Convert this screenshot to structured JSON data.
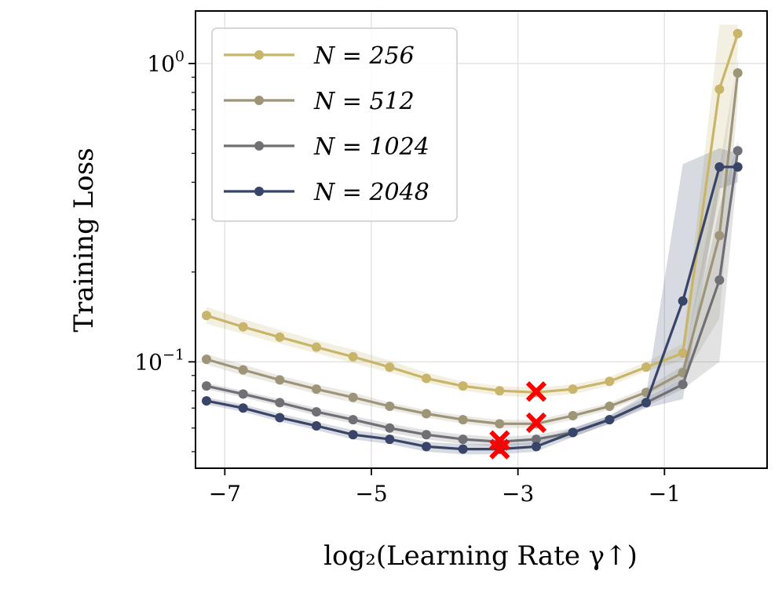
{
  "chart_data": {
    "type": "line",
    "title": "",
    "xlabel": "log₂(Learning Rate γ↑)",
    "ylabel": "Training Loss",
    "xlim": [
      -7.4,
      0.4
    ],
    "ylim": [
      0.044,
      1.5
    ],
    "yscale": "log",
    "grid": true,
    "legend_position": "top-left",
    "xticks": [
      -7,
      -5,
      -3,
      -1
    ],
    "xtick_labels": [
      "−7",
      "−5",
      "−3",
      "−1"
    ],
    "yticks": [
      0.1,
      1.0
    ],
    "x": [
      -7.25,
      -6.75,
      -6.25,
      -5.75,
      -5.25,
      -4.75,
      -4.25,
      -3.75,
      -3.25,
      -2.75,
      -2.25,
      -1.75,
      -1.25,
      -0.75,
      -0.25,
      0.0
    ],
    "series": [
      {
        "name": "N = 256",
        "color": "#c8b569",
        "values": [
          0.143,
          0.131,
          0.121,
          0.112,
          0.104,
          0.096,
          0.088,
          0.083,
          0.08,
          0.079,
          0.081,
          0.086,
          0.096,
          0.107,
          0.82,
          1.26
        ],
        "band_low": [
          0.134,
          0.124,
          0.115,
          0.107,
          0.099,
          0.092,
          0.085,
          0.08,
          0.077,
          0.076,
          0.078,
          0.083,
          0.093,
          0.101,
          0.35,
          1.1
        ],
        "band_high": [
          0.153,
          0.139,
          0.128,
          0.118,
          0.11,
          0.101,
          0.092,
          0.086,
          0.083,
          0.082,
          0.084,
          0.089,
          0.1,
          0.115,
          1.35,
          1.35
        ]
      },
      {
        "name": "N = 512",
        "color": "#9e9478",
        "values": [
          0.102,
          0.094,
          0.087,
          0.081,
          0.076,
          0.071,
          0.067,
          0.064,
          0.062,
          0.062,
          0.066,
          0.071,
          0.079,
          0.092,
          0.265,
          0.93
        ],
        "band_low": [
          0.098,
          0.09,
          0.084,
          0.078,
          0.073,
          0.069,
          0.065,
          0.062,
          0.06,
          0.06,
          0.064,
          0.069,
          0.077,
          0.088,
          0.14,
          0.75
        ],
        "band_high": [
          0.106,
          0.098,
          0.09,
          0.084,
          0.079,
          0.073,
          0.069,
          0.066,
          0.064,
          0.064,
          0.068,
          0.073,
          0.082,
          0.097,
          0.45,
          1.05
        ]
      },
      {
        "name": "N = 1024",
        "color": "#6f7075",
        "values": [
          0.083,
          0.078,
          0.073,
          0.068,
          0.064,
          0.06,
          0.057,
          0.055,
          0.054,
          0.055,
          0.058,
          0.064,
          0.073,
          0.084,
          0.188,
          0.51
        ],
        "band_low": [
          0.081,
          0.076,
          0.071,
          0.066,
          0.062,
          0.058,
          0.055,
          0.053,
          0.052,
          0.053,
          0.056,
          0.062,
          0.071,
          0.081,
          0.1,
          0.45
        ],
        "band_high": [
          0.085,
          0.08,
          0.075,
          0.07,
          0.066,
          0.062,
          0.059,
          0.057,
          0.056,
          0.057,
          0.06,
          0.066,
          0.076,
          0.088,
          0.33,
          0.55
        ]
      },
      {
        "name": "N = 2048",
        "color": "#384468",
        "values": [
          0.074,
          0.07,
          0.065,
          0.061,
          0.057,
          0.055,
          0.052,
          0.051,
          0.051,
          0.052,
          0.058,
          0.064,
          0.073,
          0.16,
          0.45,
          0.45
        ],
        "band_low": [
          0.072,
          0.068,
          0.063,
          0.059,
          0.055,
          0.053,
          0.05,
          0.049,
          0.049,
          0.05,
          0.056,
          0.062,
          0.07,
          0.075,
          0.38,
          0.4
        ],
        "band_high": [
          0.076,
          0.072,
          0.067,
          0.063,
          0.059,
          0.057,
          0.054,
          0.053,
          0.053,
          0.054,
          0.06,
          0.066,
          0.078,
          0.46,
          0.52,
          0.5
        ]
      }
    ],
    "optimum_markers": [
      {
        "series": "N = 256",
        "x": -2.75,
        "y": 0.0795
      },
      {
        "series": "N = 512",
        "x": -2.75,
        "y": 0.0625
      },
      {
        "series": "N = 1024",
        "x": -3.25,
        "y": 0.0545
      },
      {
        "series": "N = 2048",
        "x": -3.25,
        "y": 0.051
      }
    ],
    "marker_color": "#ff0000"
  }
}
